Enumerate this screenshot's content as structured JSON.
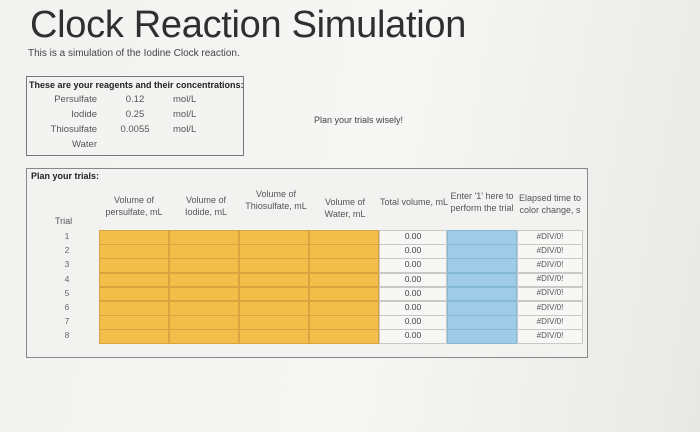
{
  "page": {
    "title": "Clock Reaction Simulation",
    "subtitle": "This is a simulation of the Iodine Clock reaction."
  },
  "reagents": {
    "header": "These are your reagents and their concentrations:",
    "rows": [
      {
        "name": "Persulfate",
        "conc": "0.12",
        "unit": "mol/L"
      },
      {
        "name": "Iodide",
        "conc": "0.25",
        "unit": "mol/L"
      },
      {
        "name": "Thiosulfate",
        "conc": "0.0055",
        "unit": "mol/L"
      },
      {
        "name": "Water",
        "conc": "",
        "unit": ""
      }
    ]
  },
  "plan_note": "Plan your trials wisely!",
  "trials": {
    "label": "Plan your trials:",
    "trial_header": "Trial",
    "headers": {
      "persulfate": "Volume of persulfate, mL",
      "iodide": "Volume of Iodide, mL",
      "thiosulfate": "Volume of Thiosulfate, mL",
      "water": "Volume of Water, mL",
      "total": "Total volume, mL",
      "enter": "Enter '1' here to perform the trial",
      "elapsed": "Elapsed time to color change, s"
    },
    "rows": [
      {
        "n": "1",
        "total": "0.00",
        "elapsed": "#DIV/0!"
      },
      {
        "n": "2",
        "total": "0.00",
        "elapsed": "#DIV/0!"
      },
      {
        "n": "3",
        "total": "0.00",
        "elapsed": "#DIV/0!"
      },
      {
        "n": "4",
        "total": "0.00",
        "elapsed": "#DIV/0!"
      },
      {
        "n": "5",
        "total": "0.00",
        "elapsed": "#DIV/0!"
      },
      {
        "n": "6",
        "total": "0.00",
        "elapsed": "#DIV/0!"
      },
      {
        "n": "7",
        "total": "0.00",
        "elapsed": "#DIV/0!"
      },
      {
        "n": "8",
        "total": "0.00",
        "elapsed": "#DIV/0!"
      }
    ]
  },
  "colors": {
    "input_cell": "#f3bd4a",
    "trigger_cell": "#9fcbe6"
  }
}
